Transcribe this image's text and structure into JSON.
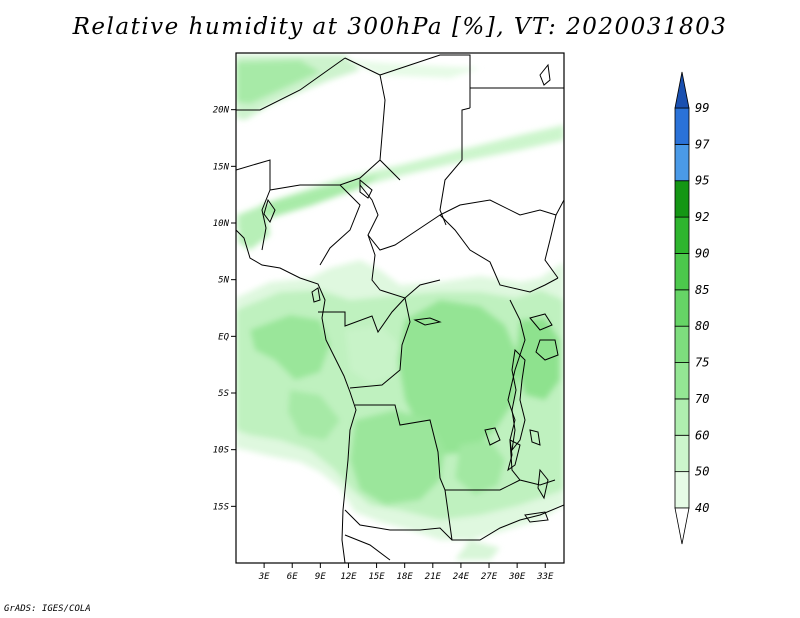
{
  "title": "Relative humidity at 300hPa [%], VT: 2020031803",
  "credit": "GrADS: IGES/COLA",
  "map": {
    "lat_labels": [
      "20N",
      "15N",
      "10N",
      "5N",
      "EQ",
      "5S",
      "10S",
      "15S"
    ],
    "lat_values": [
      20,
      15,
      10,
      5,
      0,
      -5,
      -10,
      -15
    ],
    "lon_labels": [
      "3E",
      "6E",
      "9E",
      "12E",
      "15E",
      "18E",
      "21E",
      "24E",
      "27E",
      "30E",
      "33E"
    ],
    "lon_values": [
      3,
      6,
      9,
      12,
      15,
      18,
      21,
      24,
      27,
      30,
      33
    ],
    "extent": {
      "lon_min": 0,
      "lon_max": 35,
      "lat_min": -20,
      "lat_max": 25
    }
  },
  "colorbar": {
    "labels": [
      "40",
      "50",
      "60",
      "70",
      "75",
      "80",
      "85",
      "90",
      "92",
      "95",
      "97",
      "99"
    ],
    "colors": [
      "#ffffff",
      "#e6fbe6",
      "#ccf5cc",
      "#b0eeb0",
      "#94e694",
      "#7edd7e",
      "#66d466",
      "#4cc84c",
      "#2eb52e",
      "#149614",
      "#4a9ae8",
      "#2a72d8",
      "#1a50b0"
    ]
  }
}
